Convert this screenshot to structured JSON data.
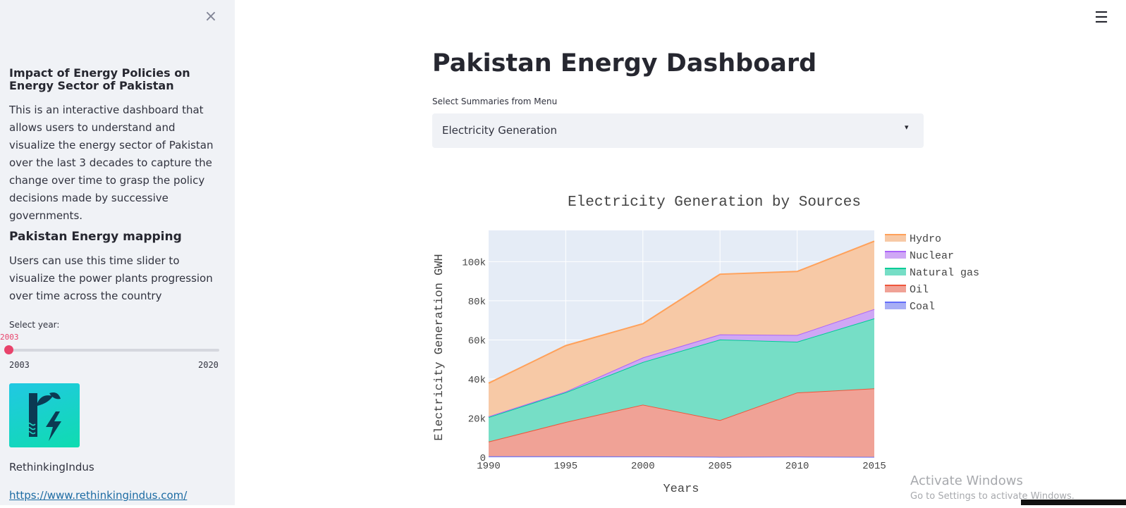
{
  "sidebar": {
    "close_icon": "×",
    "section1": {
      "title": "Impact of Energy Policies on Energy Sector of Pakistan",
      "text": "This is an interactive dashboard that allows users to understand and visualize the energy sector of Pakistan over the last 3 decades to capture the change over time to grasp the policy decisions made by successive governments."
    },
    "section2": {
      "title": "Pakistan Energy mapping",
      "text": "Users can use this time slider to visualize the power plants progression over time across the country"
    },
    "slider": {
      "label": "Select year:",
      "value": "2003",
      "min": "2003",
      "max": "2020",
      "level": 0
    },
    "logo": {
      "icon": "rethinkingindus-logo",
      "name": "RethinkingIndus",
      "link": "https://www.rethinkingindus.com/"
    }
  },
  "header": {
    "menu_icon": "☰"
  },
  "main": {
    "title": "Pakistan Energy Dashboard",
    "select_label": "Select Summaries from Menu",
    "select_value": "Electricity Generation",
    "select_caret": "▾"
  },
  "chart_data": {
    "type": "area",
    "title": "Electricity Generation by Sources",
    "xlabel": "Years",
    "ylabel": "Electricity Generation GWH",
    "x": [
      1990,
      1995,
      2000,
      2005,
      2010,
      2015
    ],
    "x_ticks": [
      "1990",
      "1995",
      "2000",
      "2005",
      "2010",
      "2015"
    ],
    "y_ticks": [
      "0",
      "20k",
      "40k",
      "60k",
      "80k",
      "100k"
    ],
    "y_tick_values": [
      0,
      20000,
      40000,
      60000,
      80000,
      100000
    ],
    "ylim": [
      0,
      116000
    ],
    "stacked": true,
    "grid": true,
    "legend_position": "right",
    "series": [
      {
        "name": "Coal",
        "values": [
          500,
          500,
          400,
          200,
          300,
          200
        ],
        "color": "#636efa",
        "fill": "#a8aef5"
      },
      {
        "name": "Oil",
        "values": [
          7500,
          17500,
          26500,
          18800,
          32800,
          35000
        ],
        "color": "#ef553b",
        "fill": "#f0a296"
      },
      {
        "name": "Natural gas",
        "values": [
          12500,
          15200,
          21800,
          41200,
          26000,
          35800
        ],
        "color": "#00cc96",
        "fill": "#76dec6"
      },
      {
        "name": "Nuclear",
        "values": [
          400,
          400,
          2300,
          2600,
          3400,
          4800
        ],
        "color": "#ab63fa",
        "fill": "#cfa7f5"
      },
      {
        "name": "Hydro",
        "values": [
          17000,
          23500,
          17300,
          30800,
          32500,
          34700
        ],
        "color": "#ffa15a",
        "fill": "#f7c9a6"
      }
    ],
    "legend_order": [
      "Hydro",
      "Nuclear",
      "Natural gas",
      "Oil",
      "Coal"
    ]
  },
  "watermark": {
    "title": "Activate Windows",
    "subtitle": "Go to Settings to activate Windows."
  }
}
